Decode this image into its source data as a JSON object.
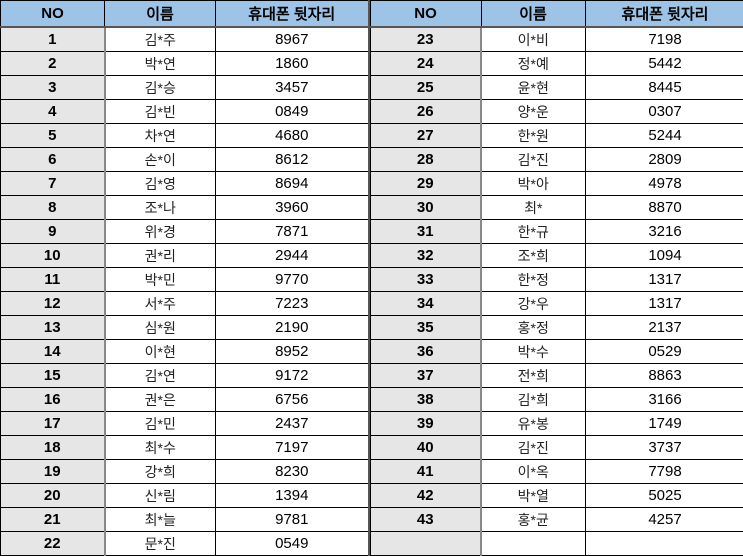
{
  "headers": {
    "no": "NO",
    "name": "이름",
    "phone": "휴대폰 뒷자리"
  },
  "left_rows": [
    {
      "no": "1",
      "name": "김*주",
      "phone": "8967"
    },
    {
      "no": "2",
      "name": "박*연",
      "phone": "1860"
    },
    {
      "no": "3",
      "name": "김*승",
      "phone": "3457"
    },
    {
      "no": "4",
      "name": "김*빈",
      "phone": "0849"
    },
    {
      "no": "5",
      "name": "차*연",
      "phone": "4680"
    },
    {
      "no": "6",
      "name": "손*이",
      "phone": "8612"
    },
    {
      "no": "7",
      "name": "김*영",
      "phone": "8694"
    },
    {
      "no": "8",
      "name": "조*나",
      "phone": "3960"
    },
    {
      "no": "9",
      "name": "위*경",
      "phone": "7871"
    },
    {
      "no": "10",
      "name": "권*리",
      "phone": "2944"
    },
    {
      "no": "11",
      "name": "박*민",
      "phone": "9770"
    },
    {
      "no": "12",
      "name": "서*주",
      "phone": "7223"
    },
    {
      "no": "13",
      "name": "심*원",
      "phone": "2190"
    },
    {
      "no": "14",
      "name": "이*현",
      "phone": "8952"
    },
    {
      "no": "15",
      "name": "김*연",
      "phone": "9172"
    },
    {
      "no": "16",
      "name": "권*은",
      "phone": "6756"
    },
    {
      "no": "17",
      "name": "김*민",
      "phone": "2437"
    },
    {
      "no": "18",
      "name": "최*수",
      "phone": "7197"
    },
    {
      "no": "19",
      "name": "강*희",
      "phone": "8230"
    },
    {
      "no": "20",
      "name": "신*림",
      "phone": "1394"
    },
    {
      "no": "21",
      "name": "최*늘",
      "phone": "9781"
    },
    {
      "no": "22",
      "name": "문*진",
      "phone": "0549"
    }
  ],
  "right_rows": [
    {
      "no": "23",
      "name": "이*비",
      "phone": "7198"
    },
    {
      "no": "24",
      "name": "정*예",
      "phone": "5442"
    },
    {
      "no": "25",
      "name": "윤*현",
      "phone": "8445"
    },
    {
      "no": "26",
      "name": "양*운",
      "phone": "0307"
    },
    {
      "no": "27",
      "name": "한*원",
      "phone": "5244"
    },
    {
      "no": "28",
      "name": "김*진",
      "phone": "2809"
    },
    {
      "no": "29",
      "name": "박*아",
      "phone": "4978"
    },
    {
      "no": "30",
      "name": "최*",
      "phone": "8870"
    },
    {
      "no": "31",
      "name": "한*규",
      "phone": "3216"
    },
    {
      "no": "32",
      "name": "조*희",
      "phone": "1094"
    },
    {
      "no": "33",
      "name": "한*정",
      "phone": "1317"
    },
    {
      "no": "34",
      "name": "강*우",
      "phone": "1317"
    },
    {
      "no": "35",
      "name": "홍*정",
      "phone": "2137"
    },
    {
      "no": "36",
      "name": "박*수",
      "phone": "0529"
    },
    {
      "no": "37",
      "name": "전*희",
      "phone": "8863"
    },
    {
      "no": "38",
      "name": "김*희",
      "phone": "3166"
    },
    {
      "no": "39",
      "name": "유*봉",
      "phone": "1749"
    },
    {
      "no": "40",
      "name": "김*진",
      "phone": "3737"
    },
    {
      "no": "41",
      "name": "이*옥",
      "phone": "7798"
    },
    {
      "no": "42",
      "name": "박*열",
      "phone": "5025"
    },
    {
      "no": "43",
      "name": "홍*균",
      "phone": "4257"
    },
    {
      "no": "",
      "name": "",
      "phone": ""
    }
  ],
  "colors": {
    "header_bg": "#9dc3e6",
    "no_col_bg": "#e6e6e6"
  }
}
